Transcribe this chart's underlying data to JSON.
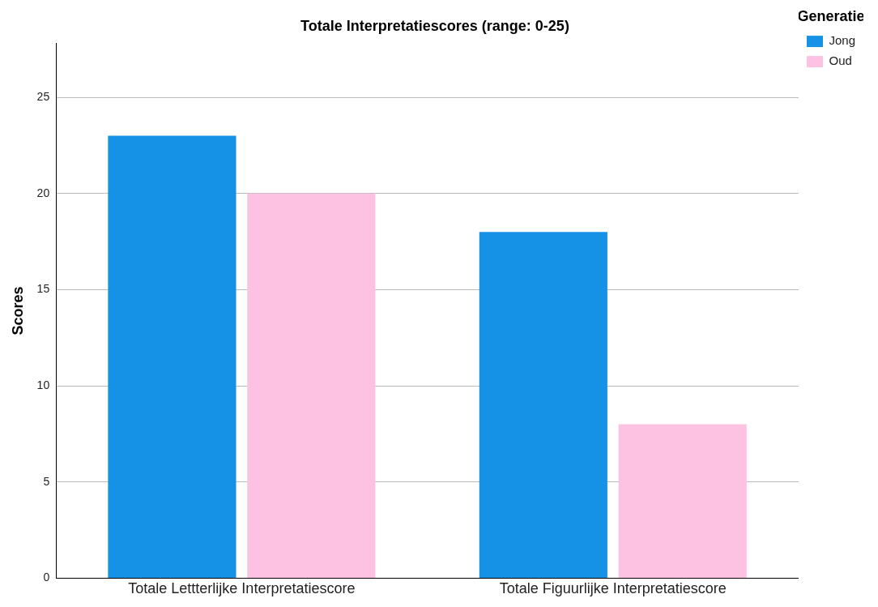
{
  "chart_data": {
    "type": "bar",
    "title": "Totale Interpretatiescores (range: 0-25)",
    "ylabel": "Scores",
    "legend_title": "Generatie",
    "legend": "right",
    "categories": [
      "Totale Lettterlijke Interpretatiescore",
      "Totale Figuurlijke Interpretatiescore"
    ],
    "series": [
      {
        "name": "Jong",
        "color": "#1591e6",
        "values": [
          23,
          18
        ]
      },
      {
        "name": "Oud",
        "color": "#fdc2e1",
        "values": [
          20,
          8
        ]
      }
    ],
    "ylim": [
      0,
      27.8
    ],
    "yticks": [
      0,
      5,
      10,
      15,
      20,
      25
    ],
    "grid": "y"
  }
}
